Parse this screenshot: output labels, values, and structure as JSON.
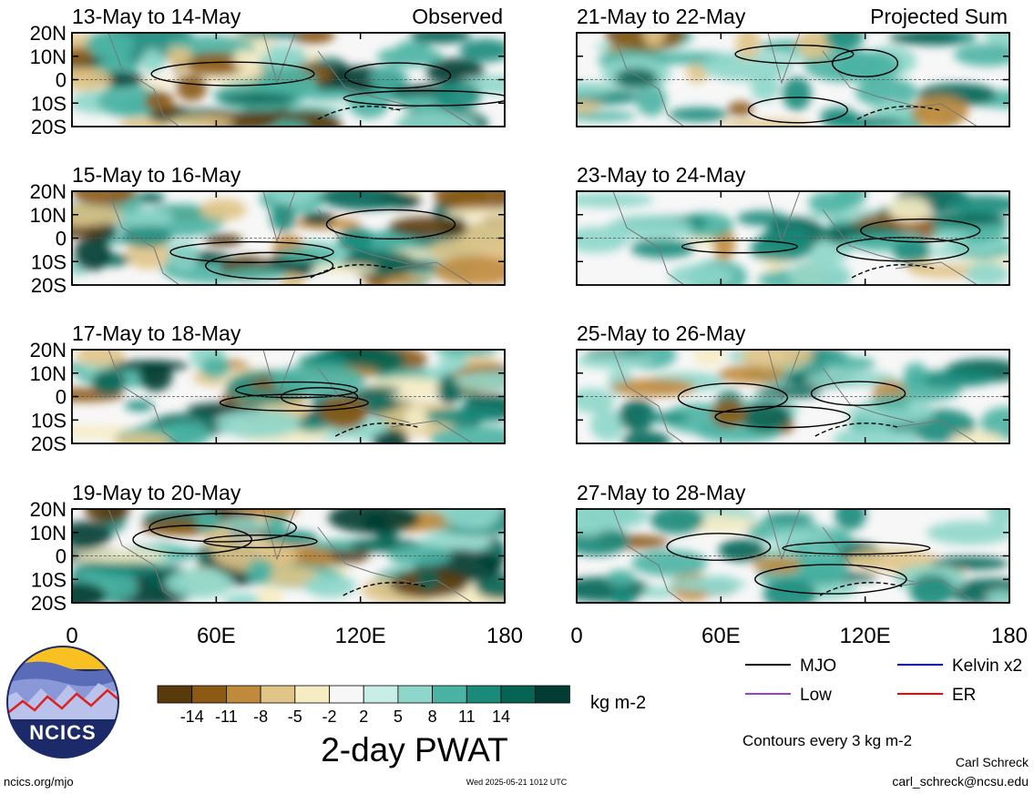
{
  "panels_left_label": "Observed",
  "panels_right_label": "Projected Sum",
  "panels": [
    {
      "title": "13-May to 14-May",
      "column": 0,
      "row": 0
    },
    {
      "title": "15-May to 16-May",
      "column": 0,
      "row": 1
    },
    {
      "title": "17-May to 18-May",
      "column": 0,
      "row": 2
    },
    {
      "title": "19-May to 20-May",
      "column": 0,
      "row": 3
    },
    {
      "title": "21-May to 22-May",
      "column": 1,
      "row": 0
    },
    {
      "title": "23-May to 24-May",
      "column": 1,
      "row": 1
    },
    {
      "title": "25-May to 26-May",
      "column": 1,
      "row": 2
    },
    {
      "title": "27-May to 28-May",
      "column": 1,
      "row": 3
    }
  ],
  "lat_labels": [
    "20N",
    "10N",
    "0",
    "10S",
    "20S"
  ],
  "lat_values": [
    20,
    10,
    0,
    -10,
    -20
  ],
  "lon_labels": [
    "0",
    "60E",
    "120E",
    "180"
  ],
  "lon_values": [
    0,
    60,
    120,
    180
  ],
  "colorbar": {
    "colors": [
      "#5a3a0a",
      "#8c5a14",
      "#c08a3c",
      "#e0c488",
      "#f6ecc4",
      "#f7f7f7",
      "#c8ece6",
      "#8ed6ca",
      "#4ab3a3",
      "#1a8a7a",
      "#066454",
      "#023c32"
    ],
    "tick_labels": [
      "-14",
      "-11",
      "-8",
      "-5",
      "-2",
      "2",
      "5",
      "8",
      "11",
      "14"
    ],
    "units": "kg m-2"
  },
  "product_title": "2-day PWAT",
  "legend": [
    {
      "label": "MJO",
      "color": "#000000"
    },
    {
      "label": "Kelvin x2",
      "color": "#0000ff"
    },
    {
      "label": "Low",
      "color": "#9a40d0"
    },
    {
      "label": "ER",
      "color": "#ff0000"
    }
  ],
  "contour_note": "Contours every 3 kg m-2",
  "author": "Carl Schreck",
  "email": "carl_schreck@ncsu.edu",
  "website": "ncics.org/mjo",
  "timestamp": "Wed 2025-05-21 1012 UTC",
  "logo_text": "NCICS"
}
